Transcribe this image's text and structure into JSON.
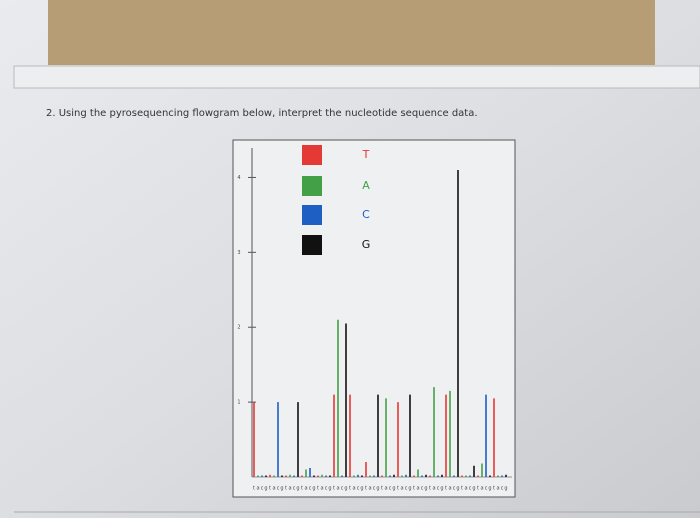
{
  "question": "2.  Using the pyrosequencing flowgram below, interpret the nucleotide sequence data.",
  "chart_data": {
    "type": "flowgram",
    "legend": [
      {
        "label": "T",
        "color": "#e53935"
      },
      {
        "label": "A",
        "color": "#43a047"
      },
      {
        "label": "C",
        "color": "#1e5fc4"
      },
      {
        "label": "G",
        "color": "#111111"
      }
    ],
    "categories": [
      "t",
      "a",
      "c",
      "g",
      "t",
      "a",
      "c",
      "g",
      "t",
      "a",
      "c",
      "g",
      "t",
      "a",
      "c",
      "g",
      "t",
      "a",
      "c",
      "g",
      "t",
      "a",
      "c",
      "g",
      "t",
      "a",
      "c",
      "g",
      "t",
      "a",
      "c",
      "g",
      "t",
      "a",
      "c",
      "g",
      "t",
      "a",
      "c",
      "g",
      "t",
      "a",
      "c",
      "g",
      "t",
      "a",
      "c",
      "g",
      "t",
      "a",
      "c",
      "g",
      "t",
      "a",
      "c",
      "g",
      "t",
      "a",
      "c",
      "g",
      "t",
      "a",
      "c",
      "g"
    ],
    "values": [
      1.0,
      0.02,
      0.02,
      0.02,
      0.03,
      0.02,
      1.0,
      0.02,
      0.02,
      0.03,
      0.02,
      1.0,
      0.02,
      0.1,
      0.12,
      0.02,
      0.02,
      0.03,
      0.02,
      0.02,
      1.1,
      2.1,
      0.02,
      2.05,
      1.1,
      0.02,
      0.03,
      0.02,
      0.2,
      0.02,
      0.02,
      1.1,
      0.02,
      1.05,
      0.02,
      0.03,
      1.0,
      0.02,
      0.03,
      1.1,
      0.02,
      0.1,
      0.02,
      0.03,
      0.02,
      1.2,
      0.02,
      0.03,
      1.1,
      1.15,
      0.02,
      4.1,
      0.02,
      0.02,
      0.02,
      0.15,
      0.02,
      0.18,
      1.1,
      0.02,
      1.05,
      0.02,
      0.02,
      0.03
    ],
    "ylim": [
      0,
      4.5
    ],
    "yticks": [
      1,
      2,
      3,
      4
    ]
  }
}
